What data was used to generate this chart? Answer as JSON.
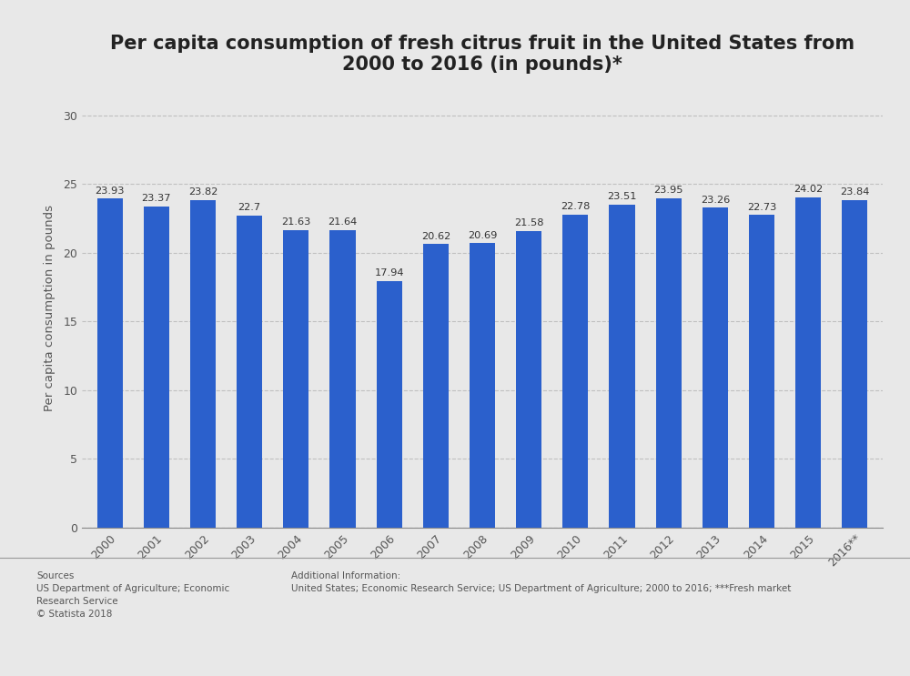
{
  "title": "Per capita consumption of fresh citrus fruit in the United States from\n2000 to 2016 (in pounds)*",
  "ylabel": "Per capita consumption in pounds",
  "categories": [
    "2000",
    "2001",
    "2002",
    "2003",
    "2004",
    "2005",
    "2006",
    "2007",
    "2008",
    "2009",
    "2010",
    "2011",
    "2012",
    "2013",
    "2014",
    "2015",
    "2016**"
  ],
  "values": [
    23.93,
    23.37,
    23.82,
    22.7,
    21.63,
    21.64,
    17.94,
    20.62,
    20.69,
    21.58,
    22.78,
    23.51,
    23.95,
    23.26,
    22.73,
    24.02,
    23.84
  ],
  "bar_color": "#2b60cc",
  "background_color": "#e8e8e8",
  "plot_bg_color": "#e8e8e8",
  "ylim": [
    0,
    32
  ],
  "yticks": [
    0,
    5,
    10,
    15,
    20,
    25,
    30
  ],
  "title_fontsize": 15,
  "label_fontsize": 9,
  "value_fontsize": 8.2,
  "ylabel_fontsize": 9.5,
  "sources_text": "Sources\nUS Department of Agriculture; Economic\nResearch Service\n© Statista 2018",
  "additional_text": "Additional Information:\nUnited States; Economic Research Service; US Department of Agriculture; 2000 to 2016; ***Fresh market"
}
